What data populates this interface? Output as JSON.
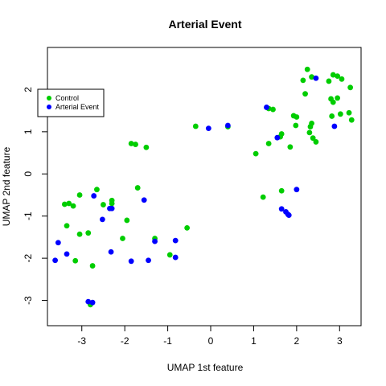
{
  "chart_data": {
    "type": "scatter",
    "title": "Arterial Event",
    "xlabel": "UMAP 1st feature",
    "ylabel": "UMAP 2nd feature",
    "xlim": [
      -3.8,
      3.5
    ],
    "ylim": [
      -3.6,
      3.0
    ],
    "xticks": [
      -3,
      -2,
      -1,
      0,
      1,
      2,
      3
    ],
    "yticks": [
      -3,
      -2,
      -1,
      0,
      1,
      2
    ],
    "grid": false,
    "legend_position": "top-left",
    "series": [
      {
        "name": "Control",
        "color": "#00CD00",
        "points": [
          [
            2.25,
            2.48
          ],
          [
            2.15,
            2.22
          ],
          [
            2.35,
            2.3
          ],
          [
            2.85,
            2.35
          ],
          [
            2.95,
            2.32
          ],
          [
            3.05,
            2.25
          ],
          [
            2.75,
            2.2
          ],
          [
            3.25,
            2.05
          ],
          [
            2.2,
            1.9
          ],
          [
            2.95,
            1.8
          ],
          [
            2.8,
            1.78
          ],
          [
            2.85,
            1.7
          ],
          [
            1.45,
            1.53
          ],
          [
            1.35,
            1.55
          ],
          [
            1.93,
            1.38
          ],
          [
            2.0,
            1.35
          ],
          [
            3.22,
            1.45
          ],
          [
            3.02,
            1.42
          ],
          [
            2.82,
            1.37
          ],
          [
            3.28,
            1.28
          ],
          [
            2.35,
            1.2
          ],
          [
            2.32,
            1.12
          ],
          [
            1.98,
            1.15
          ],
          [
            2.3,
            0.98
          ],
          [
            1.65,
            0.95
          ],
          [
            1.62,
            0.88
          ],
          [
            2.38,
            0.85
          ],
          [
            2.45,
            0.76
          ],
          [
            1.85,
            0.64
          ],
          [
            1.35,
            0.72
          ],
          [
            1.05,
            0.48
          ],
          [
            -0.35,
            1.13
          ],
          [
            0.4,
            1.12
          ],
          [
            -1.85,
            0.72
          ],
          [
            -1.75,
            0.7
          ],
          [
            -1.5,
            0.63
          ],
          [
            -3.4,
            -0.72
          ],
          [
            -3.3,
            -0.7
          ],
          [
            -3.2,
            -0.76
          ],
          [
            -3.05,
            -0.5
          ],
          [
            -2.65,
            -0.37
          ],
          [
            -2.5,
            -0.73
          ],
          [
            -2.3,
            -0.63
          ],
          [
            -2.3,
            -0.7
          ],
          [
            -1.7,
            -0.33
          ],
          [
            -1.95,
            -1.1
          ],
          [
            -3.35,
            -1.23
          ],
          [
            -3.05,
            -1.43
          ],
          [
            -2.85,
            -1.4
          ],
          [
            -2.05,
            -1.53
          ],
          [
            -1.3,
            -1.53
          ],
          [
            -0.55,
            -1.28
          ],
          [
            -0.95,
            -1.92
          ],
          [
            -3.15,
            -2.06
          ],
          [
            -2.75,
            -2.18
          ],
          [
            1.22,
            -0.55
          ],
          [
            1.65,
            -0.4
          ],
          [
            -2.8,
            -3.1
          ]
        ]
      },
      {
        "name": "Arterial Event",
        "color": "#0000FF",
        "points": [
          [
            2.45,
            2.27
          ],
          [
            1.3,
            1.58
          ],
          [
            -0.05,
            1.08
          ],
          [
            0.4,
            1.15
          ],
          [
            1.55,
            0.86
          ],
          [
            2.88,
            1.13
          ],
          [
            -2.72,
            -0.52
          ],
          [
            -2.3,
            -0.82
          ],
          [
            -2.35,
            -0.82
          ],
          [
            -2.52,
            -1.08
          ],
          [
            -1.55,
            -0.62
          ],
          [
            -3.55,
            -1.63
          ],
          [
            -3.35,
            -1.9
          ],
          [
            -3.62,
            -2.05
          ],
          [
            -2.32,
            -1.85
          ],
          [
            -1.85,
            -2.07
          ],
          [
            -1.45,
            -2.05
          ],
          [
            -1.3,
            -1.6
          ],
          [
            -0.82,
            -1.58
          ],
          [
            -0.82,
            -1.98
          ],
          [
            1.65,
            -0.83
          ],
          [
            1.75,
            -0.9
          ],
          [
            1.82,
            -0.98
          ],
          [
            1.8,
            -0.96
          ],
          [
            2.0,
            -0.37
          ],
          [
            -2.85,
            -3.03
          ],
          [
            -2.75,
            -3.05
          ]
        ]
      }
    ]
  }
}
